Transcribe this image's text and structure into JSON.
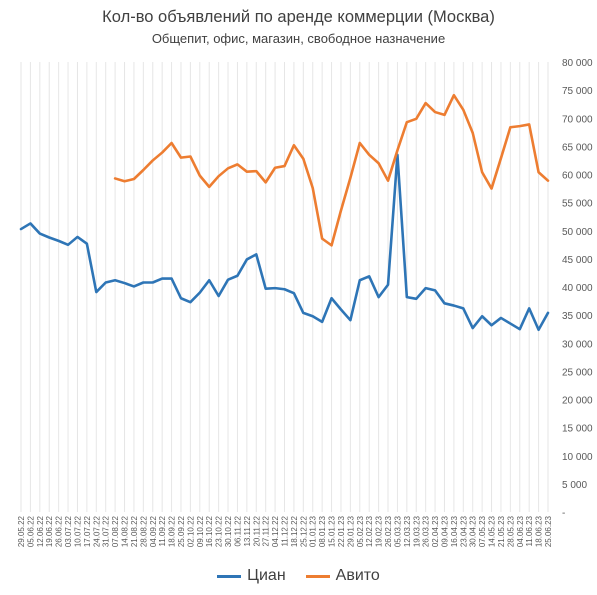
{
  "chart_data": {
    "type": "line",
    "title": "Кол-во объявлений по аренде коммерции (Москва)",
    "subtitle": "Общепит, офис, магазин, свободное назначение",
    "ylim": [
      0,
      80000
    ],
    "y_ticks": [
      0,
      5000,
      10000,
      15000,
      20000,
      25000,
      30000,
      35000,
      40000,
      45000,
      50000,
      55000,
      60000,
      65000,
      70000,
      75000,
      80000
    ],
    "y_tick_labels": [
      "-",
      "5 000",
      "10 000",
      "15 000",
      "20 000",
      "25 000",
      "30 000",
      "35 000",
      "40 000",
      "45 000",
      "50 000",
      "55 000",
      "60 000",
      "65 000",
      "70 000",
      "75 000",
      "80 000"
    ],
    "y_axis_position": "right",
    "grid": "vertical",
    "legend": "bottom",
    "x": [
      "29.05.22",
      "05.06.22",
      "12.06.22",
      "19.06.22",
      "26.06.22",
      "03.07.22",
      "10.07.22",
      "17.07.22",
      "24.07.22",
      "31.07.22",
      "07.08.22",
      "14.08.22",
      "21.08.22",
      "28.08.22",
      "04.09.22",
      "11.09.22",
      "18.09.22",
      "25.09.22",
      "02.10.22",
      "09.10.22",
      "16.10.22",
      "23.10.22",
      "30.10.22",
      "06.11.22",
      "13.11.22",
      "20.11.22",
      "27.11.22",
      "04.12.22",
      "11.12.22",
      "18.12.22",
      "25.12.22",
      "01.01.23",
      "08.01.23",
      "15.01.23",
      "22.01.23",
      "29.01.23",
      "05.02.23",
      "12.02.23",
      "19.02.23",
      "26.02.23",
      "05.03.23",
      "12.03.23",
      "19.03.23",
      "26.03.23",
      "02.04.23",
      "09.04.23",
      "16.04.23",
      "23.04.23",
      "30.04.23",
      "07.05.23",
      "14.05.23",
      "21.05.23",
      "28.05.23",
      "04.06.23",
      "11.06.23",
      "18.06.23",
      "25.06.23"
    ],
    "series": [
      {
        "name": "Циан",
        "color": "#2E75B6",
        "values": [
          50300,
          51300,
          49500,
          48800,
          48200,
          47500,
          48900,
          47700,
          39100,
          40800,
          41200,
          40700,
          40100,
          40800,
          40800,
          41500,
          41500,
          38000,
          37300,
          39000,
          41200,
          38400,
          41300,
          42000,
          44900,
          45800,
          39700,
          39800,
          39600,
          38900,
          35400,
          34800,
          33800,
          38000,
          36000,
          34100,
          41200,
          41900,
          38200,
          40400,
          63500,
          38200,
          37900,
          39800,
          39400,
          37100,
          36700,
          36200,
          32700,
          34800,
          33200,
          34500,
          33500,
          32500,
          36200,
          32400,
          35400
        ]
      },
      {
        "name": "Авито",
        "color": "#ED7D31",
        "values": [
          null,
          null,
          null,
          null,
          null,
          null,
          null,
          null,
          null,
          null,
          59300,
          58800,
          59200,
          60800,
          62500,
          63900,
          65600,
          63000,
          63200,
          59800,
          57800,
          59700,
          61100,
          61800,
          60500,
          60600,
          58600,
          61200,
          61500,
          65200,
          62800,
          57600,
          48600,
          47400,
          53600,
          59400,
          65600,
          63500,
          62000,
          58900,
          64300,
          69300,
          69900,
          72700,
          71100,
          70600,
          74100,
          71500,
          67400,
          60400,
          57500,
          62900,
          68400,
          68600,
          68900,
          60400,
          58900
        ]
      }
    ]
  }
}
